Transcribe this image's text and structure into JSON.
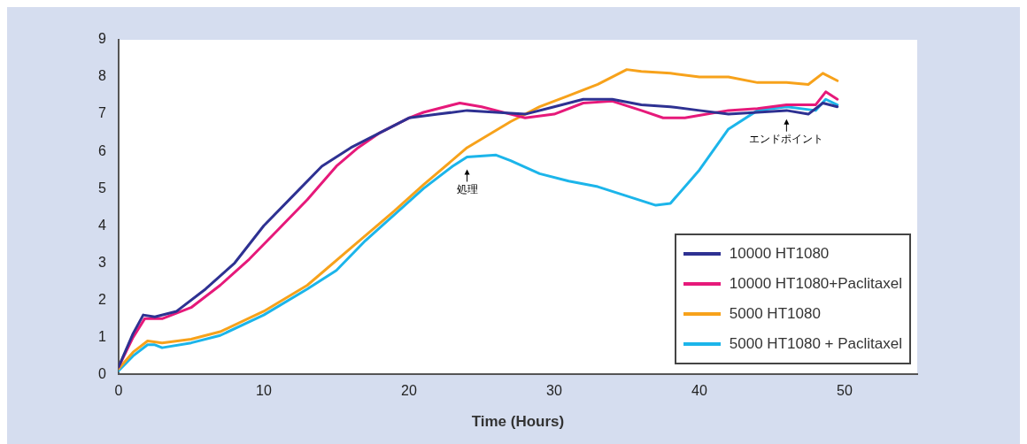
{
  "chart_data": {
    "type": "line",
    "xlabel": "Time (Hours)",
    "xlim": [
      0,
      55
    ],
    "xticks": [
      0,
      10,
      20,
      30,
      40,
      50
    ],
    "ylim": [
      0,
      9
    ],
    "yticks": [
      0,
      1,
      2,
      3,
      4,
      5,
      6,
      7,
      8,
      9
    ],
    "grid": false,
    "legend": "bottom right",
    "marker": "none",
    "line_style": "solid",
    "series": [
      {
        "name": "10000 HT1080",
        "color": "#2e3192",
        "x": [
          0,
          1,
          1.7,
          2.5,
          4,
          6,
          8,
          10,
          12,
          14,
          16,
          18,
          20,
          22,
          24,
          26,
          28,
          30,
          32,
          34,
          36,
          38,
          40,
          42,
          44,
          46,
          47.5,
          48.5,
          49.5
        ],
        "values": [
          0.2,
          1.1,
          1.6,
          1.55,
          1.7,
          2.3,
          3.0,
          4.0,
          4.8,
          5.6,
          6.1,
          6.5,
          6.9,
          7.0,
          7.1,
          7.05,
          7.0,
          7.2,
          7.4,
          7.4,
          7.25,
          7.2,
          7.1,
          7.0,
          7.05,
          7.1,
          7.0,
          7.3,
          7.2
        ]
      },
      {
        "name": "10000 HT1080+Paclitaxel",
        "color": "#e6197a",
        "x": [
          0,
          1,
          1.8,
          3,
          5,
          7,
          9,
          11,
          13,
          15,
          16.5,
          18,
          20,
          21,
          23.5,
          25,
          27,
          28,
          30,
          32,
          34,
          36,
          37.5,
          39,
          40.5,
          42,
          44,
          46,
          48,
          48.7,
          49.5
        ],
        "values": [
          0.2,
          1.0,
          1.5,
          1.5,
          1.8,
          2.4,
          3.1,
          3.9,
          4.7,
          5.6,
          6.1,
          6.5,
          6.9,
          7.05,
          7.3,
          7.2,
          7.0,
          6.9,
          7.0,
          7.3,
          7.35,
          7.1,
          6.9,
          6.9,
          7.0,
          7.1,
          7.15,
          7.25,
          7.25,
          7.6,
          7.4
        ]
      },
      {
        "name": "5000 HT1080",
        "color": "#f7a21b",
        "x": [
          0,
          1,
          2,
          3,
          5,
          7,
          10,
          13,
          16,
          19,
          21,
          24,
          27,
          29,
          31,
          33,
          35,
          36,
          38,
          40,
          42,
          44,
          46,
          47.5,
          48.5,
          49.5
        ],
        "values": [
          0.15,
          0.6,
          0.9,
          0.85,
          0.95,
          1.15,
          1.7,
          2.4,
          3.4,
          4.4,
          5.1,
          6.1,
          6.8,
          7.2,
          7.5,
          7.8,
          8.2,
          8.15,
          8.1,
          8.0,
          8.0,
          7.85,
          7.85,
          7.8,
          8.1,
          7.9
        ]
      },
      {
        "name": "5000 HT1080 + Paclitaxel",
        "color": "#1cb5ea",
        "x": [
          0,
          1,
          2,
          2.5,
          3,
          5,
          7,
          10,
          13,
          15,
          17,
          19,
          21,
          23,
          24,
          26,
          27,
          29,
          31,
          33,
          35,
          37,
          38,
          40,
          42,
          44,
          46,
          48,
          48.7,
          49.5
        ],
        "values": [
          0.1,
          0.5,
          0.8,
          0.8,
          0.72,
          0.85,
          1.05,
          1.6,
          2.3,
          2.8,
          3.6,
          4.3,
          5.0,
          5.6,
          5.85,
          5.9,
          5.75,
          5.4,
          5.2,
          5.05,
          4.8,
          4.55,
          4.6,
          5.5,
          6.6,
          7.1,
          7.2,
          7.1,
          7.4,
          7.25
        ]
      }
    ],
    "annotations": [
      {
        "text": "処理",
        "x": 24,
        "y": 5.85
      },
      {
        "text": "エンドポイント",
        "x": 46,
        "y": 7.2
      }
    ]
  }
}
